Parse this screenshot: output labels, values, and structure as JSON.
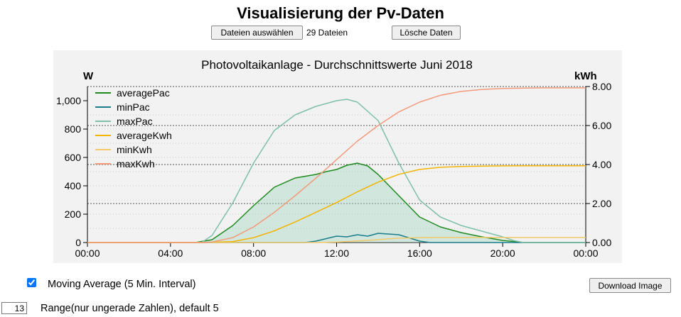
{
  "page": {
    "title": "Visualisierung der Pv-Daten",
    "select_files_button": "Dateien auswählen",
    "files_count_text": "29 Dateien",
    "delete_button": "Lösche Daten",
    "moving_average_label": "Moving Average (5 Min. Interval)",
    "moving_average_checked": true,
    "download_button": "Download Image",
    "range_value": "13",
    "range_label": "Range(nur ungerade Zahlen), default 5"
  },
  "chart_data": {
    "type": "line",
    "title": "Photovoltaikanlage - Durchschnittswerte Juni 2018",
    "ylabel_left": "W",
    "ylabel_right": "kWh",
    "x_tick_labels": [
      "00:00",
      "04:00",
      "08:00",
      "12:00",
      "16:00",
      "20:00",
      "00:00"
    ],
    "x_range_hours": [
      0,
      24
    ],
    "y_left_ticks": [
      "0",
      "200",
      "400",
      "600",
      "800",
      "1,000"
    ],
    "y_left_range": [
      0,
      1100
    ],
    "y_right_ticks": [
      "0.00",
      "2.00",
      "4.00",
      "6.00",
      "8.00"
    ],
    "y_right_range": [
      0,
      8
    ],
    "grid": "horizontal dotted",
    "legend_position": "top-left",
    "series": [
      {
        "name": "averagePac",
        "axis": "left",
        "color": "#1e8a1e",
        "fill": true,
        "x": [
          0,
          5.2,
          6,
          7,
          8,
          9,
          10,
          11,
          11.5,
          12,
          12.5,
          13,
          13.5,
          14,
          15,
          16,
          17,
          18,
          19,
          20,
          21,
          24
        ],
        "y": [
          0,
          0,
          20,
          120,
          260,
          390,
          455,
          480,
          500,
          515,
          545,
          560,
          540,
          480,
          330,
          180,
          110,
          70,
          40,
          15,
          0,
          0
        ]
      },
      {
        "name": "minPac",
        "axis": "left",
        "color": "#1a7d8a",
        "fill": false,
        "x": [
          0,
          10.5,
          11,
          12,
          12.5,
          13,
          13.5,
          14,
          15,
          16,
          16.5,
          24
        ],
        "y": [
          0,
          0,
          10,
          45,
          40,
          55,
          45,
          65,
          55,
          10,
          0,
          0
        ]
      },
      {
        "name": "maxPac",
        "axis": "left",
        "color": "#7fbfaa",
        "fill": false,
        "x": [
          0,
          5.5,
          6,
          7,
          8,
          9,
          10,
          11,
          12,
          12.5,
          13,
          14,
          15,
          16,
          17,
          18,
          19,
          20,
          20.5,
          21,
          24
        ],
        "y": [
          0,
          0,
          50,
          280,
          560,
          790,
          900,
          960,
          1000,
          1010,
          990,
          860,
          560,
          300,
          180,
          120,
          80,
          40,
          15,
          0,
          0
        ]
      },
      {
        "name": "averageKwh",
        "axis": "right",
        "color": "#f4b400",
        "fill": false,
        "x": [
          0,
          5.5,
          7,
          8,
          9,
          10,
          11,
          12,
          13,
          14,
          15,
          16,
          17,
          18,
          19,
          20,
          21,
          22,
          24
        ],
        "y": [
          0,
          0,
          0.05,
          0.25,
          0.6,
          1.05,
          1.55,
          2.05,
          2.6,
          3.1,
          3.5,
          3.75,
          3.86,
          3.9,
          3.92,
          3.93,
          3.94,
          3.94,
          3.94
        ]
      },
      {
        "name": "minKwh",
        "axis": "right",
        "color": "#f2c96b",
        "fill": false,
        "x": [
          0,
          11,
          12,
          13,
          14,
          15,
          16,
          16.5,
          24
        ],
        "y": [
          0,
          0,
          0.02,
          0.08,
          0.15,
          0.22,
          0.25,
          0.26,
          0.26
        ]
      },
      {
        "name": "maxKwh",
        "axis": "right",
        "color": "#f39a7a",
        "fill": false,
        "x": [
          0,
          5.5,
          6,
          7,
          8,
          9,
          10,
          11,
          12,
          13,
          14,
          15,
          16,
          17,
          18,
          19,
          20,
          21,
          22,
          24
        ],
        "y": [
          0,
          0,
          0.03,
          0.25,
          0.8,
          1.55,
          2.4,
          3.3,
          4.25,
          5.2,
          6.0,
          6.7,
          7.2,
          7.55,
          7.75,
          7.85,
          7.9,
          7.92,
          7.93,
          7.93
        ]
      }
    ]
  }
}
